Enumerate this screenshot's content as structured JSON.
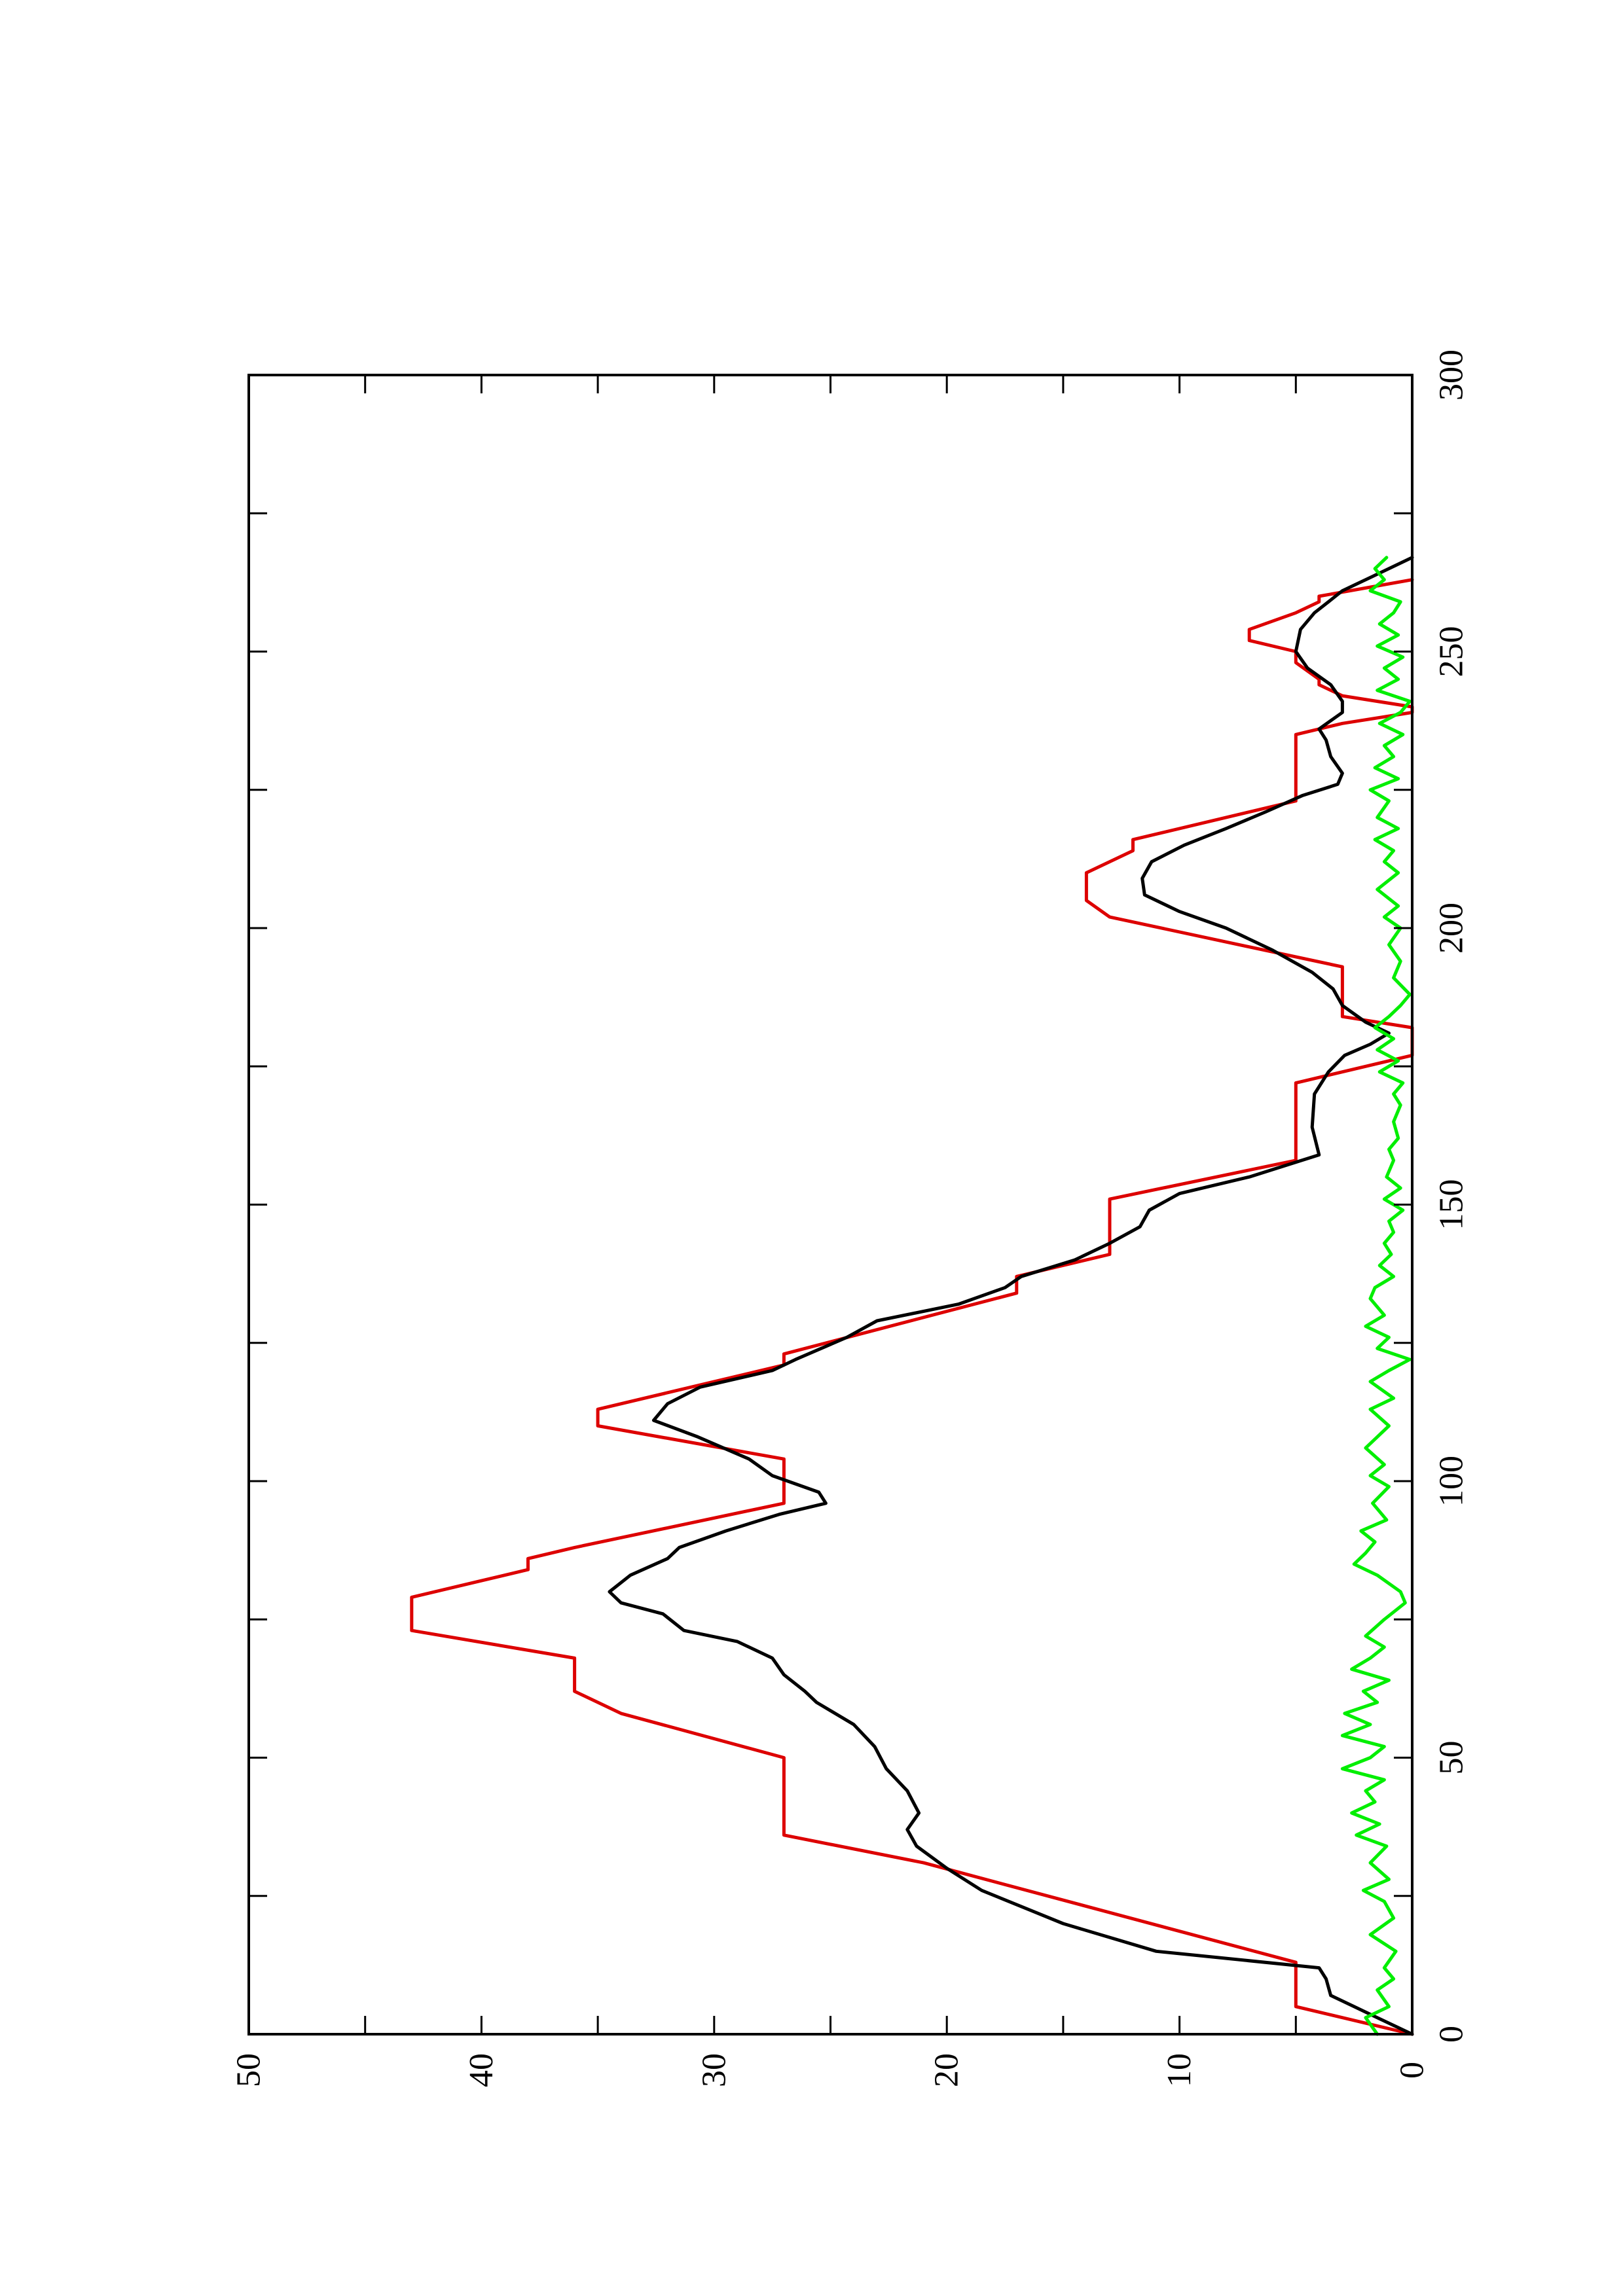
{
  "chart_data": {
    "type": "line",
    "orientation": "rotated-90-ccw",
    "title": "",
    "xlabel": "",
    "ylabel": "",
    "xlim": [
      0,
      300
    ],
    "ylim": [
      0,
      50
    ],
    "x_ticks": [
      0,
      50,
      100,
      150,
      200,
      250,
      300
    ],
    "y_ticks": [
      0,
      10,
      20,
      30,
      40,
      50
    ],
    "x_tick_labels": [
      "0",
      "50",
      "100",
      "150",
      "200",
      "250",
      "300"
    ],
    "y_tick_labels": [
      "0",
      "10",
      "20",
      "30",
      "40",
      "50"
    ],
    "grid": false,
    "legend": "none",
    "series": [
      {
        "color": "#dd0000",
        "points": [
          [
            0,
            0
          ],
          [
            5,
            5
          ],
          [
            13,
            5
          ],
          [
            31,
            21
          ],
          [
            36,
            27
          ],
          [
            50,
            27
          ],
          [
            58,
            34
          ],
          [
            62,
            36
          ],
          [
            68,
            36
          ],
          [
            73,
            43
          ],
          [
            79,
            43
          ],
          [
            84,
            38
          ],
          [
            86,
            38
          ],
          [
            88,
            36
          ],
          [
            96,
            27
          ],
          [
            104,
            27
          ],
          [
            110,
            35
          ],
          [
            113,
            35
          ],
          [
            121,
            27
          ],
          [
            123,
            27
          ],
          [
            134,
            17
          ],
          [
            137,
            17
          ],
          [
            141,
            13
          ],
          [
            151,
            13
          ],
          [
            158,
            5
          ],
          [
            172,
            5
          ],
          [
            177,
            0
          ],
          [
            182,
            0
          ],
          [
            184,
            3
          ],
          [
            193,
            3
          ],
          [
            202,
            13
          ],
          [
            205,
            14
          ],
          [
            210,
            14
          ],
          [
            214,
            12
          ],
          [
            216,
            12
          ],
          [
            223,
            5
          ],
          [
            226,
            5
          ],
          [
            235,
            5
          ],
          [
            237,
            3
          ],
          [
            239,
            0
          ],
          [
            240,
            0
          ],
          [
            242,
            3
          ],
          [
            244,
            4
          ],
          [
            245,
            4
          ],
          [
            248,
            5
          ],
          [
            250,
            5
          ],
          [
            252,
            7
          ],
          [
            254,
            7
          ],
          [
            257,
            5
          ],
          [
            259,
            4
          ],
          [
            260,
            4
          ],
          [
            263,
            0
          ]
        ]
      },
      {
        "color": "#000000",
        "points": [
          [
            0,
            0
          ],
          [
            3,
            1.5
          ],
          [
            5,
            2.5
          ],
          [
            7,
            3.5
          ],
          [
            10,
            3.7
          ],
          [
            12,
            4
          ],
          [
            15,
            11
          ],
          [
            20,
            15
          ],
          [
            26,
            18.5
          ],
          [
            30,
            20
          ],
          [
            34,
            21.3
          ],
          [
            37,
            21.7
          ],
          [
            40,
            21.2
          ],
          [
            44,
            21.7
          ],
          [
            48,
            22.6
          ],
          [
            52,
            23.1
          ],
          [
            56,
            24
          ],
          [
            60,
            25.6
          ],
          [
            62,
            26.1
          ],
          [
            65,
            27
          ],
          [
            68,
            27.5
          ],
          [
            71,
            29
          ],
          [
            73,
            31.3
          ],
          [
            76,
            32.2
          ],
          [
            78,
            34
          ],
          [
            80,
            34.5
          ],
          [
            83,
            33.6
          ],
          [
            86,
            32
          ],
          [
            88,
            31.5
          ],
          [
            91,
            29.5
          ],
          [
            94,
            27.2
          ],
          [
            96,
            25.2
          ],
          [
            98,
            25.5
          ],
          [
            101,
            27.5
          ],
          [
            104,
            28.5
          ],
          [
            108,
            30.7
          ],
          [
            111,
            32.6
          ],
          [
            114,
            32
          ],
          [
            117,
            30.6
          ],
          [
            120,
            27.5
          ],
          [
            122,
            26.5
          ],
          [
            126,
            24.3
          ],
          [
            129,
            23
          ],
          [
            132,
            19.5
          ],
          [
            135,
            17.5
          ],
          [
            137,
            16.8
          ],
          [
            140,
            14.5
          ],
          [
            143,
            13
          ],
          [
            146,
            11.7
          ],
          [
            149,
            11.3
          ],
          [
            152,
            10
          ],
          [
            155,
            7
          ],
          [
            159,
            4
          ],
          [
            164,
            4.3
          ],
          [
            170,
            4.2
          ],
          [
            174,
            3.6
          ],
          [
            177,
            2.9
          ],
          [
            179,
            1.8
          ],
          [
            181,
            1
          ],
          [
            183,
            2
          ],
          [
            186,
            3
          ],
          [
            189,
            3.4
          ],
          [
            192,
            4.3
          ],
          [
            196,
            6
          ],
          [
            200,
            8
          ],
          [
            203,
            10
          ],
          [
            206,
            11.5
          ],
          [
            209,
            11.6
          ],
          [
            212,
            11.2
          ],
          [
            215,
            9.8
          ],
          [
            218,
            8
          ],
          [
            221,
            6.3
          ],
          [
            224,
            4.7
          ],
          [
            226,
            3.2
          ],
          [
            228,
            3
          ],
          [
            231,
            3.5
          ],
          [
            234,
            3.7
          ],
          [
            236,
            4
          ],
          [
            239,
            3
          ],
          [
            241,
            3
          ],
          [
            244,
            3.5
          ],
          [
            247,
            4.5
          ],
          [
            250,
            5
          ],
          [
            254,
            4.8
          ],
          [
            257,
            4.2
          ],
          [
            259,
            3.6
          ],
          [
            261,
            3
          ],
          [
            263,
            2
          ],
          [
            265,
            1
          ],
          [
            267,
            0
          ]
        ]
      },
      {
        "color": "#00ee00",
        "points": [
          [
            0,
            1.5
          ],
          [
            3,
            2
          ],
          [
            5,
            1
          ],
          [
            8,
            1.5
          ],
          [
            10,
            0.8
          ],
          [
            12,
            1.2
          ],
          [
            15,
            0.7
          ],
          [
            18,
            1.8
          ],
          [
            21,
            0.8
          ],
          [
            24,
            1.2
          ],
          [
            26,
            2.1
          ],
          [
            28,
            1
          ],
          [
            31,
            1.8
          ],
          [
            34,
            1.1
          ],
          [
            36,
            2.4
          ],
          [
            38,
            1.4
          ],
          [
            40,
            2.6
          ],
          [
            42,
            1.6
          ],
          [
            44,
            2
          ],
          [
            46,
            1.2
          ],
          [
            48,
            3
          ],
          [
            50,
            1.8
          ],
          [
            52,
            1.2
          ],
          [
            54,
            3
          ],
          [
            56,
            1.8
          ],
          [
            58,
            2.9
          ],
          [
            60,
            1.5
          ],
          [
            62,
            2.1
          ],
          [
            64,
            1
          ],
          [
            66,
            2.6
          ],
          [
            68,
            1.8
          ],
          [
            70,
            1.2
          ],
          [
            72,
            2
          ],
          [
            75,
            1.2
          ],
          [
            78,
            0.3
          ],
          [
            80,
            0.5
          ],
          [
            83,
            1.5
          ],
          [
            85,
            2.5
          ],
          [
            87,
            2
          ],
          [
            89,
            1.6
          ],
          [
            91,
            2.2
          ],
          [
            93,
            1.1
          ],
          [
            96,
            1.7
          ],
          [
            99,
            1
          ],
          [
            101,
            1.8
          ],
          [
            103,
            1.2
          ],
          [
            106,
            2
          ],
          [
            108,
            1.5
          ],
          [
            110,
            1
          ],
          [
            113,
            1.8
          ],
          [
            115,
            0.8
          ],
          [
            118,
            1.8
          ],
          [
            120,
            1
          ],
          [
            122,
            0.1
          ],
          [
            124,
            1.5
          ],
          [
            126,
            1
          ],
          [
            128,
            2
          ],
          [
            130,
            1.2
          ],
          [
            133,
            1.8
          ],
          [
            135,
            1.6
          ],
          [
            137,
            0.8
          ],
          [
            139,
            1.4
          ],
          [
            141,
            0.9
          ],
          [
            143,
            1.2
          ],
          [
            145,
            0.8
          ],
          [
            147,
            1
          ],
          [
            149,
            0.4
          ],
          [
            151,
            1.2
          ],
          [
            153,
            0.5
          ],
          [
            155,
            1.1
          ],
          [
            158,
            0.8
          ],
          [
            160,
            1
          ],
          [
            162,
            0.6
          ],
          [
            165,
            0.8
          ],
          [
            168,
            0.5
          ],
          [
            170,
            0.8
          ],
          [
            172,
            0.4
          ],
          [
            174,
            1.4
          ],
          [
            176,
            0.6
          ],
          [
            178,
            1.5
          ],
          [
            180,
            0.8
          ],
          [
            182,
            1.6
          ],
          [
            184,
            1
          ],
          [
            186,
            0.5
          ],
          [
            188,
            0.1
          ],
          [
            191,
            0.8
          ],
          [
            194,
            0.5
          ],
          [
            197,
            1
          ],
          [
            200,
            0.5
          ],
          [
            202,
            1.2
          ],
          [
            204,
            0.6
          ],
          [
            207,
            1.5
          ],
          [
            210,
            0.6
          ],
          [
            212,
            1.2
          ],
          [
            214,
            0.8
          ],
          [
            216,
            1.6
          ],
          [
            218,
            0.6
          ],
          [
            220,
            1.5
          ],
          [
            223,
            1
          ],
          [
            225,
            1.8
          ],
          [
            227,
            0.6
          ],
          [
            229,
            1.6
          ],
          [
            231,
            0.8
          ],
          [
            233,
            1.2
          ],
          [
            235,
            0.4
          ],
          [
            237,
            1.4
          ],
          [
            239,
            0.5
          ],
          [
            241,
            0.1
          ],
          [
            243,
            1.5
          ],
          [
            245,
            0.6
          ],
          [
            247,
            1.2
          ],
          [
            249,
            0.4
          ],
          [
            251,
            1.5
          ],
          [
            253,
            0.6
          ],
          [
            255,
            1.4
          ],
          [
            257,
            0.8
          ],
          [
            259,
            0.5
          ],
          [
            261,
            1.8
          ],
          [
            263,
            1.2
          ],
          [
            265,
            1.6
          ],
          [
            267,
            1.1
          ]
        ]
      }
    ]
  }
}
